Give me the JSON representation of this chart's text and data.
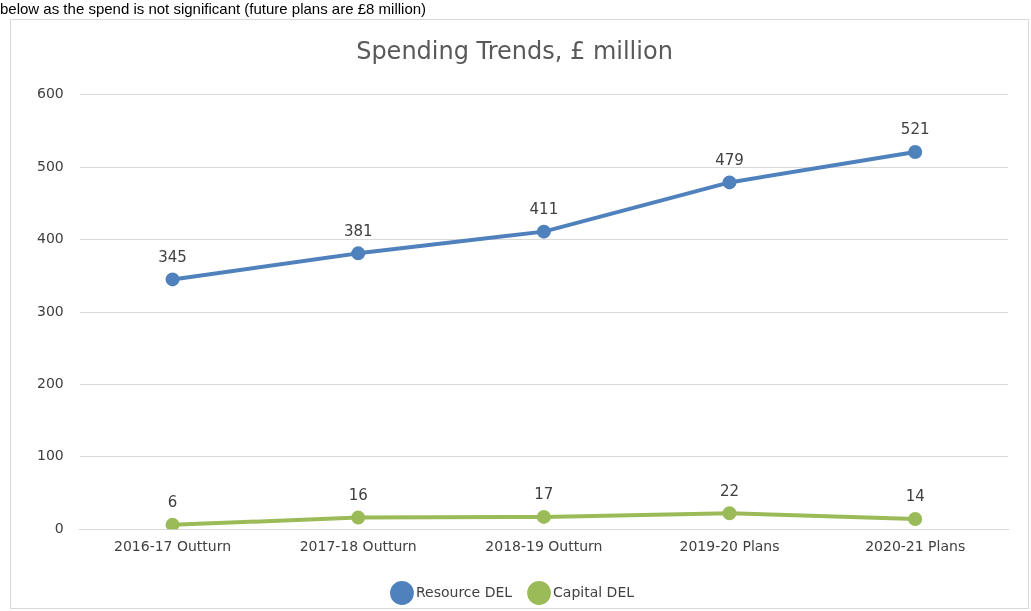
{
  "chart_data": {
    "type": "line",
    "title": "Spending Trends, £ million",
    "categories": [
      "2016-17 Outturn",
      "2017-18 Outturn",
      "2018-19 Outturn",
      "2019-20 Plans",
      "2020-21 Plans"
    ],
    "series": [
      {
        "name": "Resource DEL",
        "color": "#4f81bd",
        "values": [
          345,
          381,
          411,
          479,
          521
        ]
      },
      {
        "name": "Capital DEL",
        "color": "#9bbb59",
        "values": [
          6,
          16,
          17,
          22,
          14
        ]
      }
    ],
    "ylim": [
      0,
      600
    ],
    "yticks": [
      0,
      100,
      200,
      300,
      400,
      500,
      600
    ],
    "grid": "y",
    "legend": "bottom",
    "marker": "circle",
    "line_style": "solid",
    "data_labels": true,
    "annotations": [
      "below as the spend is not significant (future plans are £8 million)"
    ]
  }
}
